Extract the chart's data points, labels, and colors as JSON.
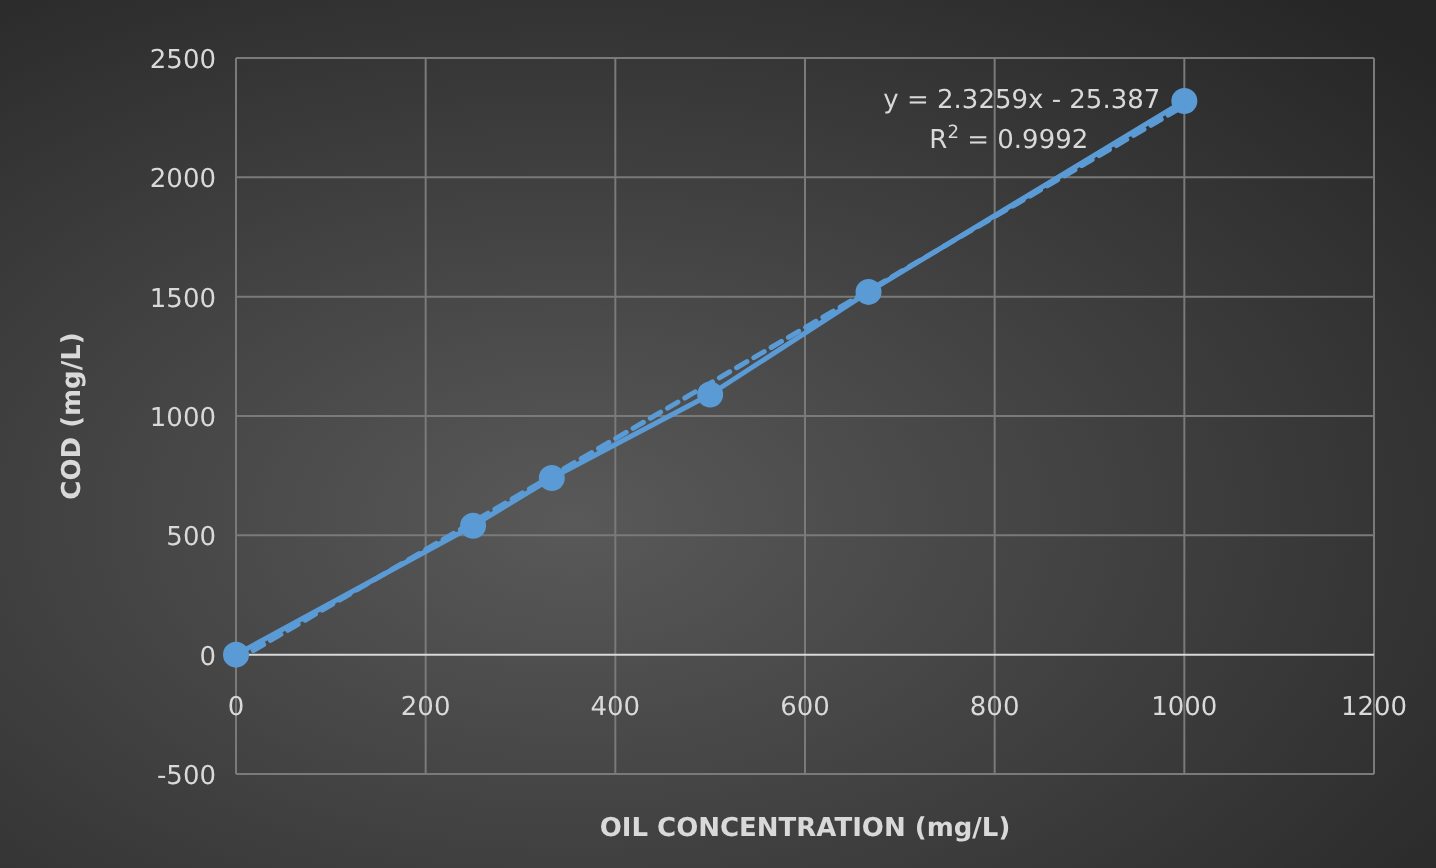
{
  "chart_data": {
    "type": "line",
    "xlabel": "OIL CONCENTRATION (mg/L)",
    "ylabel": "COD (mg/L)",
    "x": [
      0,
      250,
      333,
      500,
      667,
      1000
    ],
    "series": [
      {
        "color": "#5b9bd5",
        "values": [
          0,
          540,
          740,
          1090,
          1520,
          2320
        ],
        "marker": "circle",
        "line_style": "solid"
      },
      {
        "type": "line",
        "color": "#5b9bd5",
        "x": [
          0,
          1000
        ],
        "values": [
          -25,
          2300
        ],
        "marker": "none",
        "line_style": "dashed"
      }
    ],
    "xlim": [
      0,
      1200
    ],
    "xticks": [
      0,
      200,
      400,
      600,
      800,
      1000,
      1200
    ],
    "ylim": [
      -500,
      2500
    ],
    "yticks": [
      -500,
      0,
      500,
      1000,
      1500,
      2000,
      2500
    ],
    "grid": true,
    "annotations": [
      "y = 2.3259x - 25.387",
      "R$^{2}$ = 0.9992"
    ]
  }
}
